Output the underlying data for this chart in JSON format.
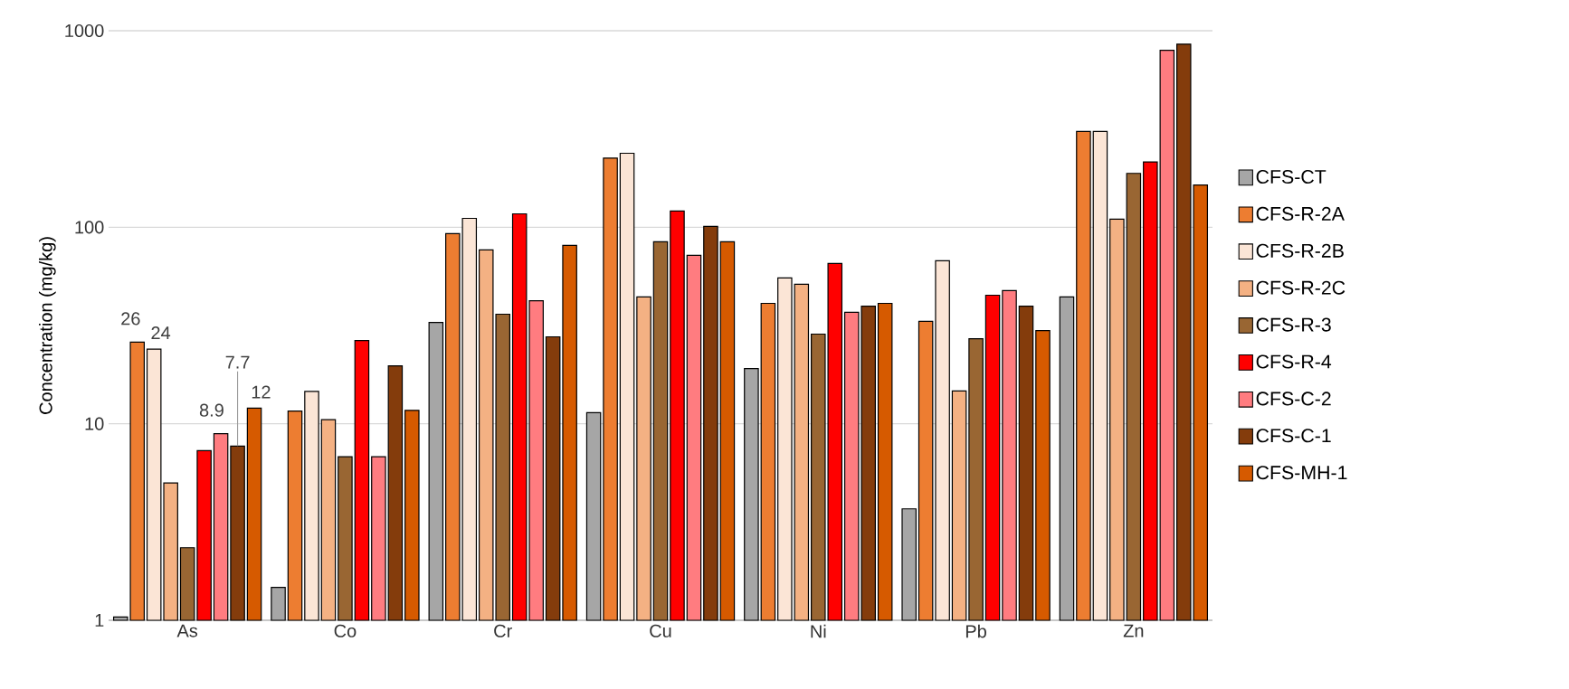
{
  "chart_data": {
    "type": "bar",
    "ylabel": "Concentration (mg/kg)",
    "categories": [
      "As",
      "Co",
      "Cr",
      "Cu",
      "Ni",
      "Pb",
      "Zn"
    ],
    "log": "y",
    "ylim": [
      1,
      1000
    ],
    "yticks": [
      1,
      10,
      100,
      1000
    ],
    "grid": "y",
    "legend": "right",
    "series": [
      {
        "name": "CFS-CT",
        "color": "#a6a6a6",
        "values": [
          1.04,
          1.47,
          32.8,
          11.4,
          19.1,
          3.69,
          44.2
        ]
      },
      {
        "name": "CFS-R-2A",
        "color": "#ed7d31",
        "values": [
          26,
          11.6,
          92.8,
          225,
          41,
          33.2,
          307
        ],
        "value_labels": [
          "26",
          null,
          null,
          null,
          null,
          null,
          null
        ]
      },
      {
        "name": "CFS-R-2B",
        "color": "#fbe5d6",
        "values": [
          24,
          14.6,
          111,
          238,
          55.2,
          67.5,
          307
        ],
        "value_labels": [
          "24",
          null,
          null,
          null,
          null,
          null,
          null
        ]
      },
      {
        "name": "CFS-R-2C",
        "color": "#f4b183",
        "values": [
          5.0,
          10.5,
          76.7,
          44.2,
          51.3,
          14.7,
          110
        ]
      },
      {
        "name": "CFS-R-3",
        "color": "#996633",
        "values": [
          2.34,
          6.8,
          36.1,
          84.4,
          28.6,
          27.1,
          188
        ]
      },
      {
        "name": "CFS-R-4",
        "color": "#ff0000",
        "values": [
          7.3,
          26.5,
          117,
          121,
          65.4,
          45.1,
          215
        ]
      },
      {
        "name": "CFS-C-2",
        "color": "#ff7c80",
        "values": [
          8.9,
          6.8,
          42.3,
          71.9,
          36.9,
          47.6,
          795
        ],
        "value_labels": [
          "8.9",
          null,
          null,
          null,
          null,
          null,
          null
        ]
      },
      {
        "name": "CFS-C-1",
        "color": "#843c0c",
        "values": [
          7.7,
          19.7,
          27.7,
          101,
          39.7,
          39.7,
          855
        ],
        "value_labels": [
          "7.7",
          null,
          null,
          null,
          null,
          null,
          null
        ]
      },
      {
        "name": "CFS-MH-1",
        "color": "#d65a00",
        "values": [
          12,
          11.7,
          80.9,
          84.4,
          41,
          29.8,
          164
        ],
        "value_labels": [
          "12",
          null,
          null,
          null,
          null,
          null,
          null
        ]
      }
    ]
  }
}
